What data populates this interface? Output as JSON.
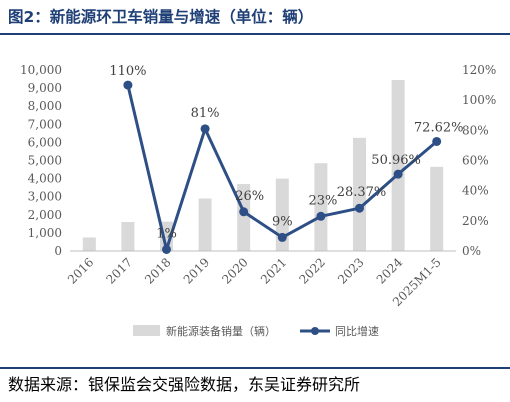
{
  "title": "图2：新能源环卫车销量与增速（单位：辆）",
  "source": "数据来源：银保监会交强险数据，东吴证券研究所",
  "colors": {
    "bar": "#d9d9d9",
    "line": "#2e4f86",
    "header": "#1f3f77",
    "axis_text": "#595959"
  },
  "chart_data": {
    "type": "bar",
    "categories": [
      "2016",
      "2017",
      "2018",
      "2019",
      "2020",
      "2021",
      "2022",
      "2023",
      "2024",
      "2025M1-5"
    ],
    "series": [
      {
        "name": "新能源装备销量（辆）",
        "type": "bar",
        "axis": "left",
        "values": [
          750,
          1600,
          1620,
          2900,
          3700,
          4000,
          4850,
          6250,
          9450,
          4650
        ]
      },
      {
        "name": "同比增速",
        "type": "line",
        "axis": "right",
        "values": [
          null,
          110,
          1,
          81,
          26,
          9,
          23,
          28.37,
          50.96,
          72.62
        ],
        "labels": [
          "",
          "110%",
          "1%",
          "81%",
          "26%",
          "9%",
          "23%",
          "28.37%",
          "50.96%",
          "72.62%"
        ]
      }
    ],
    "y_left": {
      "ylim": [
        0,
        10000
      ],
      "ticks": [
        0,
        1000,
        2000,
        3000,
        4000,
        5000,
        6000,
        7000,
        8000,
        9000,
        10000
      ],
      "tick_labels": [
        "0",
        "1,000",
        "2,000",
        "3,000",
        "4,000",
        "5,000",
        "6,000",
        "7,000",
        "8,000",
        "9,000",
        "10,000"
      ]
    },
    "y_right": {
      "ylim": [
        0,
        120
      ],
      "ticks": [
        0,
        20,
        40,
        60,
        80,
        100,
        120
      ],
      "tick_labels": [
        "0%",
        "20%",
        "40%",
        "60%",
        "80%",
        "100%",
        "120%"
      ]
    },
    "grid": false,
    "legend_position": "bottom"
  }
}
